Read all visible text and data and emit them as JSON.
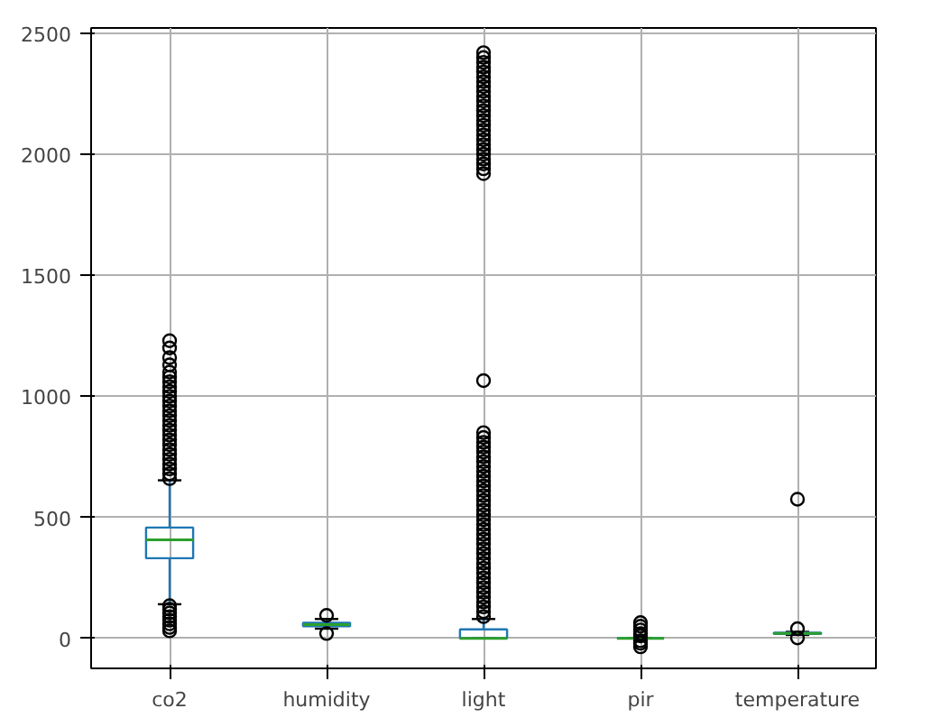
{
  "chart_data": {
    "type": "box",
    "categories": [
      "co2",
      "humidity",
      "light",
      "pir",
      "temperature"
    ],
    "ylim": [
      -124,
      2522
    ],
    "yticks": [
      0,
      500,
      1000,
      1500,
      2000,
      2500
    ],
    "grid": true,
    "series": [
      {
        "color": "#1f77b4",
        "boxes": [
          {
            "low": 141,
            "q1": 331,
            "median": 407,
            "q3": 458,
            "high": 653,
            "outliers": [
              31,
              45,
              60,
              75,
              90,
              105,
              120,
              135,
              660,
              680,
              700,
              720,
              740,
              760,
              780,
              800,
              820,
              840,
              860,
              880,
              900,
              920,
              940,
              960,
              980,
              1000,
              1020,
              1040,
              1060,
              1080,
              1100,
              1130,
              1160,
              1200,
              1230
            ]
          },
          {
            "low": 40,
            "q1": 50,
            "median": 57,
            "q3": 64,
            "high": 80,
            "outliers": [
              20,
              95
            ]
          },
          {
            "low": 0,
            "q1": 0,
            "median": 0,
            "q3": 37,
            "high": 80,
            "outliers": [
              90,
              110,
              130,
              150,
              170,
              190,
              210,
              230,
              250,
              270,
              290,
              310,
              330,
              350,
              370,
              390,
              410,
              430,
              450,
              470,
              490,
              510,
              530,
              550,
              570,
              590,
              610,
              630,
              650,
              670,
              690,
              710,
              730,
              750,
              770,
              790,
              810,
              830,
              850,
              1065,
              1920,
              1940,
              1960,
              1980,
              2000,
              2020,
              2040,
              2060,
              2080,
              2100,
              2120,
              2140,
              2160,
              2180,
              2200,
              2220,
              2240,
              2260,
              2280,
              2300,
              2320,
              2340,
              2360,
              2380,
              2400,
              2420
            ]
          },
          {
            "low": 0,
            "q1": 0,
            "median": 0,
            "q3": 0,
            "high": 0,
            "outliers": [
              -35,
              -20,
              -10,
              10,
              20,
              35,
              50,
              65
            ]
          },
          {
            "low": 14,
            "q1": 18,
            "median": 20,
            "q3": 23,
            "high": 27,
            "outliers": [
              2,
              40,
              575
            ]
          }
        ]
      }
    ]
  }
}
